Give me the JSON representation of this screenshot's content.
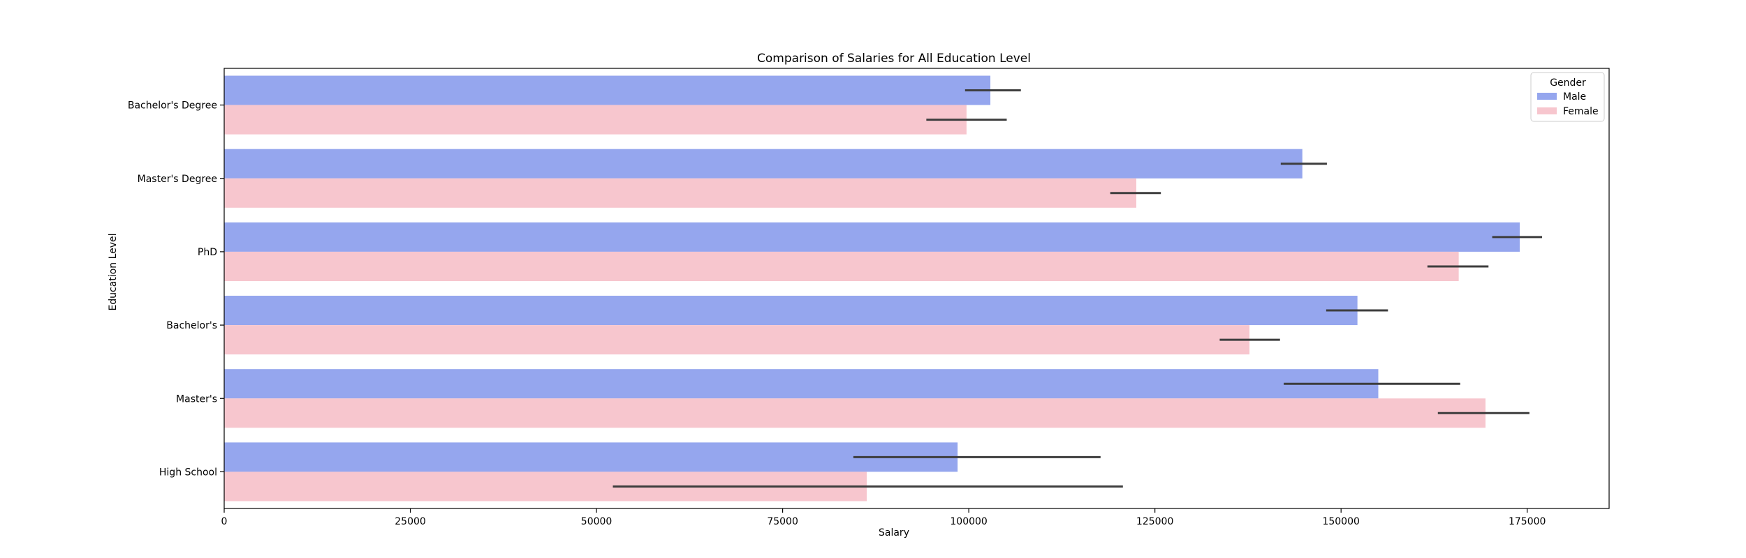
{
  "chart_data": {
    "type": "bar",
    "orientation": "horizontal",
    "title": "Comparison of Salaries for All Education Level",
    "xlabel": "Salary",
    "ylabel": "Education Level",
    "categories": [
      "Bachelor's Degree",
      "Master's Degree",
      "PhD",
      "Bachelor's",
      "Master's",
      "High School"
    ],
    "xlim": [
      0,
      186000
    ],
    "xticks": [
      0,
      25000,
      50000,
      75000,
      100000,
      125000,
      150000,
      175000
    ],
    "grid": false,
    "legend": {
      "title": "Gender",
      "position": "top-right"
    },
    "series": [
      {
        "name": "Male",
        "color": "#95a6ee",
        "values": [
          102900,
          144800,
          174000,
          152200,
          155000,
          98500
        ],
        "error_low": [
          99500,
          141900,
          170300,
          148000,
          142300,
          84500
        ],
        "error_high": [
          107000,
          148100,
          177000,
          156300,
          166000,
          117700
        ]
      },
      {
        "name": "Female",
        "color": "#f7c6ce",
        "values": [
          99700,
          122500,
          165800,
          137700,
          169400,
          86300
        ],
        "error_low": [
          94300,
          119000,
          161600,
          133700,
          163000,
          52200
        ],
        "error_high": [
          105100,
          125800,
          169800,
          141800,
          175300,
          120700
        ]
      }
    ]
  }
}
